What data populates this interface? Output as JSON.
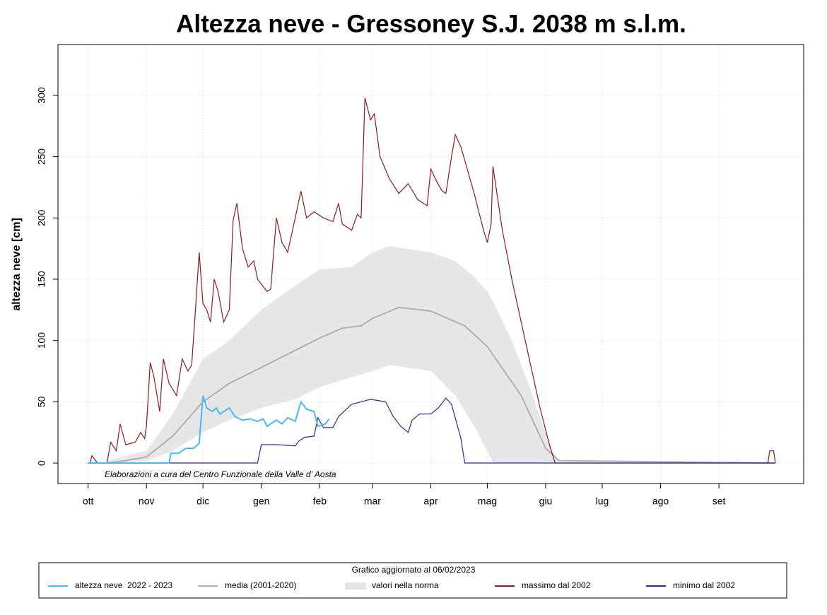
{
  "chart_data": {
    "type": "line",
    "title": "Altezza neve - Gressoney S.J. 2038 m s.l.m.",
    "y_label": "altezza neve [cm]",
    "annotation": "Elaborazioni a cura del Centro Funzionale della Valle d' Aosta",
    "legend_title": "Grafico aggiornato al 06/02/2023",
    "legend": "bottom",
    "grid": true,
    "xlim": [
      -16,
      380
    ],
    "ylim": [
      -16.7,
      341.5
    ],
    "xticks": [
      {
        "value": 0,
        "label": "ott"
      },
      {
        "value": 31,
        "label": "nov"
      },
      {
        "value": 61,
        "label": "dic"
      },
      {
        "value": 92,
        "label": "gen"
      },
      {
        "value": 123,
        "label": "feb"
      },
      {
        "value": 151,
        "label": "mar"
      },
      {
        "value": 182,
        "label": "apr"
      },
      {
        "value": 212,
        "label": "mag"
      },
      {
        "value": 243,
        "label": "giu"
      },
      {
        "value": 273,
        "label": "lug"
      },
      {
        "value": 304,
        "label": "ago"
      },
      {
        "value": 335,
        "label": "set"
      }
    ],
    "yticks": [
      0,
      50,
      100,
      150,
      200,
      250,
      300
    ],
    "series": [
      {
        "name": "altezza neve  2022 - 2023",
        "color": "#49b8f0",
        "x": [
          0,
          43,
          44,
          48,
          52,
          56,
          59,
          61,
          63,
          66,
          68,
          70,
          75,
          78,
          82,
          86,
          90,
          93,
          95,
          100,
          103,
          106,
          110,
          113,
          116,
          120,
          122,
          126,
          128
        ],
        "values": [
          0,
          0,
          8,
          8,
          12,
          12,
          16,
          55,
          45,
          42,
          45,
          40,
          45,
          38,
          35,
          36,
          34,
          36,
          30,
          35,
          32,
          37,
          34,
          50,
          44,
          42,
          30,
          32,
          36
        ]
      },
      {
        "name": "media (2001-2020)",
        "color": "#b0b0b0",
        "x": [
          0,
          10,
          20,
          31,
          45,
          61,
          75,
          92,
          110,
          123,
          135,
          145,
          151,
          165,
          182,
          200,
          212,
          230,
          243,
          250,
          365
        ],
        "values": [
          0,
          0,
          2,
          5,
          22,
          50,
          65,
          78,
          92,
          102,
          110,
          112,
          118,
          127,
          124,
          112,
          95,
          55,
          12,
          2,
          0
        ]
      },
      {
        "name": "valori nella norma",
        "color": "#e6e6e6",
        "kind": "area",
        "x": [
          10,
          31,
          45,
          61,
          75,
          92,
          110,
          123,
          140,
          151,
          160,
          182,
          195,
          205,
          212,
          215,
          225,
          235,
          245,
          250
        ],
        "values": [
          2,
          10,
          40,
          85,
          100,
          125,
          145,
          158,
          160,
          172,
          177,
          172,
          165,
          152,
          140,
          132,
          100,
          60,
          15,
          0
        ],
        "lower": [
          0,
          2,
          10,
          25,
          35,
          45,
          52,
          62,
          70,
          75,
          80,
          75,
          55,
          30,
          10,
          0,
          0,
          0,
          0,
          0
        ]
      },
      {
        "name": "massimo dal 2002",
        "color": "#8b1a1a",
        "x": [
          0,
          1,
          2,
          5,
          10,
          12,
          15,
          17,
          20,
          25,
          28,
          30,
          31,
          33,
          35,
          38,
          40,
          43,
          47,
          50,
          53,
          55,
          57,
          59,
          61,
          63,
          65,
          67,
          69,
          72,
          75,
          77,
          79,
          82,
          85,
          88,
          90,
          95,
          97,
          100,
          103,
          106,
          110,
          113,
          116,
          120,
          125,
          130,
          133,
          135,
          140,
          143,
          145,
          147,
          150,
          152,
          155,
          160,
          165,
          170,
          175,
          180,
          182,
          185,
          188,
          190,
          193,
          195,
          198,
          205,
          210,
          212,
          214,
          215,
          220,
          225,
          235,
          240,
          245,
          248,
          361,
          362,
          364,
          365
        ],
        "values": [
          0,
          0,
          6,
          0,
          0,
          17,
          10,
          32,
          15,
          17,
          25,
          20,
          30,
          82,
          70,
          42,
          85,
          65,
          55,
          85,
          75,
          80,
          125,
          172,
          130,
          125,
          115,
          150,
          140,
          115,
          125,
          198,
          212,
          175,
          160,
          165,
          150,
          140,
          142,
          200,
          180,
          172,
          200,
          222,
          200,
          205,
          200,
          197,
          212,
          195,
          190,
          203,
          200,
          298,
          280,
          285,
          250,
          232,
          220,
          228,
          215,
          210,
          240,
          230,
          222,
          220,
          250,
          268,
          258,
          220,
          190,
          180,
          195,
          242,
          190,
          150,
          80,
          45,
          15,
          0,
          0,
          10,
          10,
          0
        ]
      },
      {
        "name": "minimo dal 2002",
        "color": "#2a2a8c",
        "x": [
          0,
          90,
          92,
          100,
          110,
          112,
          115,
          120,
          122,
          125,
          130,
          133,
          140,
          150,
          158,
          162,
          166,
          170,
          172,
          176,
          182,
          186,
          190,
          193,
          198,
          200,
          365
        ],
        "values": [
          0,
          0,
          15,
          15,
          14,
          18,
          21,
          22,
          37,
          29,
          29,
          38,
          48,
          52,
          50,
          38,
          30,
          25,
          35,
          40,
          40,
          45,
          53,
          48,
          20,
          0,
          0
        ]
      }
    ]
  }
}
